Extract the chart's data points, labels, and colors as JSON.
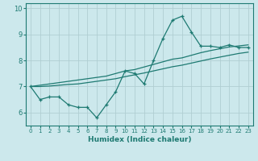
{
  "xlabel": "Humidex (Indice chaleur)",
  "bg_color": "#cce8ec",
  "grid_color": "#b0ced2",
  "line_color": "#1e7a72",
  "x_values": [
    0,
    1,
    2,
    3,
    4,
    5,
    6,
    7,
    8,
    9,
    10,
    11,
    12,
    13,
    14,
    15,
    16,
    17,
    18,
    19,
    20,
    21,
    22,
    23
  ],
  "line_curve": [
    7.0,
    6.5,
    6.6,
    6.6,
    6.3,
    6.2,
    6.2,
    5.8,
    6.3,
    6.8,
    7.6,
    7.5,
    7.1,
    8.0,
    8.85,
    9.55,
    9.7,
    9.1,
    8.55,
    8.55,
    8.5,
    8.6,
    8.5,
    8.5
  ],
  "line_upper": [
    7.0,
    7.05,
    7.1,
    7.15,
    7.2,
    7.25,
    7.3,
    7.35,
    7.4,
    7.5,
    7.6,
    7.65,
    7.75,
    7.85,
    7.95,
    8.05,
    8.1,
    8.2,
    8.3,
    8.38,
    8.45,
    8.52,
    8.56,
    8.6
  ],
  "line_lower": [
    7.0,
    7.0,
    7.02,
    7.05,
    7.08,
    7.1,
    7.15,
    7.2,
    7.25,
    7.3,
    7.38,
    7.45,
    7.52,
    7.6,
    7.68,
    7.76,
    7.82,
    7.9,
    7.98,
    8.06,
    8.13,
    8.2,
    8.27,
    8.32
  ],
  "ylim": [
    5.5,
    10.2
  ],
  "yticks": [
    6,
    7,
    8,
    9,
    10
  ],
  "xticks": [
    0,
    1,
    2,
    3,
    4,
    5,
    6,
    7,
    8,
    9,
    10,
    11,
    12,
    13,
    14,
    15,
    16,
    17,
    18,
    19,
    20,
    21,
    22,
    23
  ],
  "xlabel_fontsize": 6.5,
  "tick_fontsize_x": 5.0,
  "tick_fontsize_y": 6.0
}
